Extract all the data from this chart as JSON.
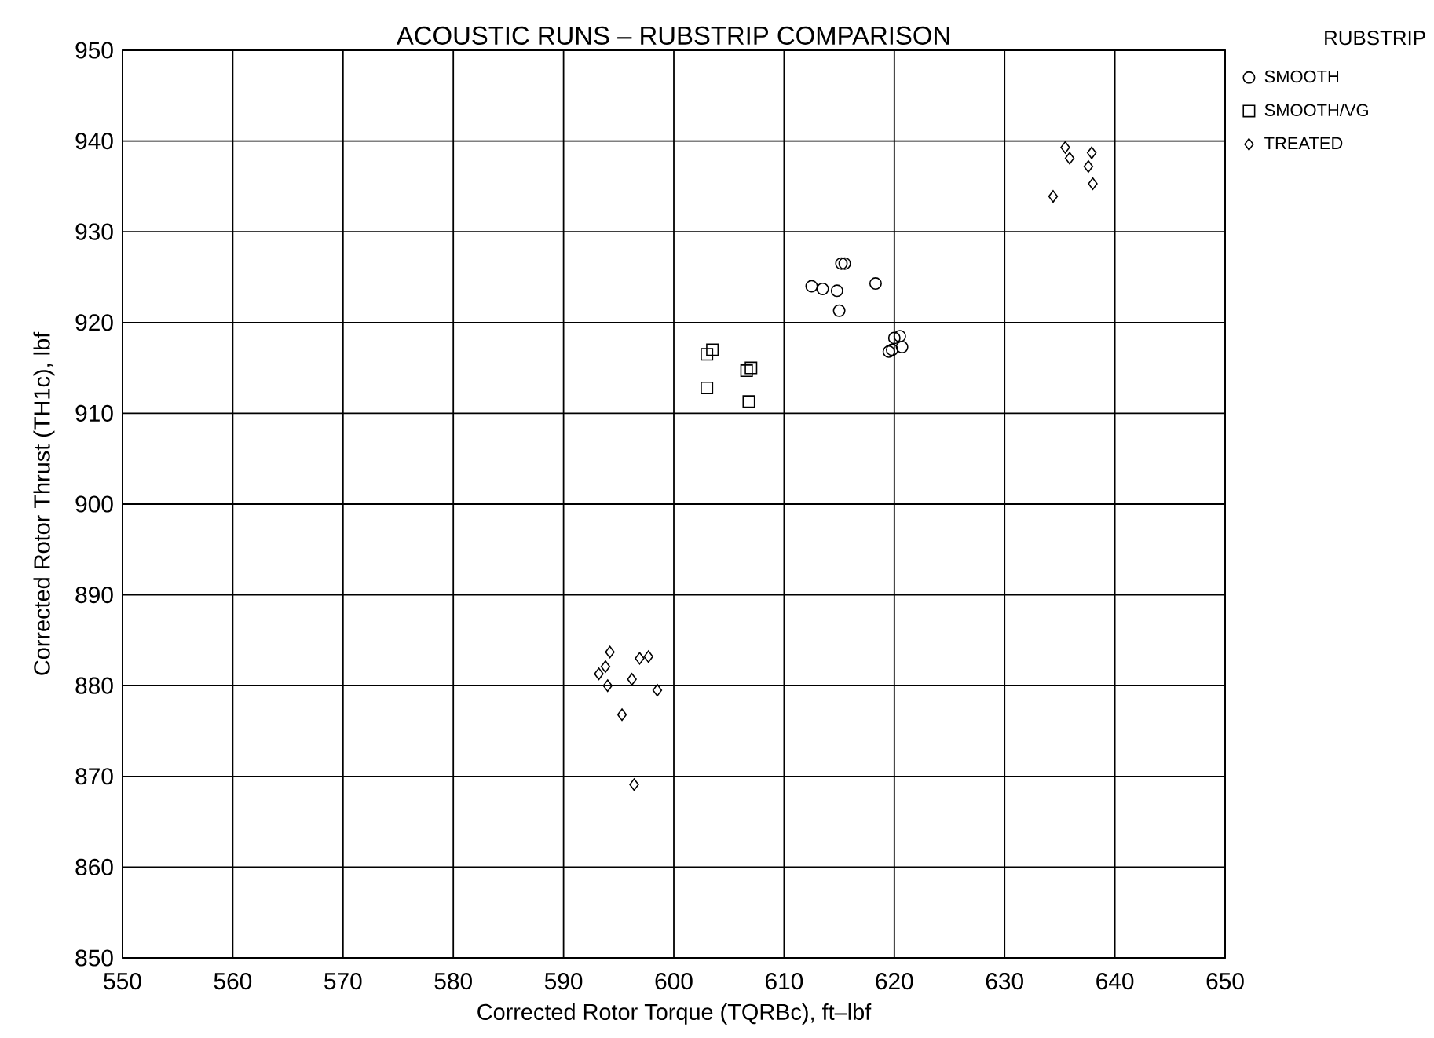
{
  "chart_data": {
    "type": "scatter",
    "title": "ACOUSTIC RUNS – RUBSTRIP COMPARISON",
    "xlabel": "Corrected Rotor Torque (TQRBc),  ft–lbf",
    "ylabel": "Corrected Rotor Thrust (TH1c),  lbf",
    "legend_title": "RUBSTRIP",
    "legend": "top right",
    "grid": true,
    "xlim": [
      550,
      650
    ],
    "xticks": [
      550,
      560,
      570,
      580,
      590,
      600,
      610,
      620,
      630,
      640,
      650
    ],
    "ylim": [
      850,
      950
    ],
    "yticks": [
      850,
      860,
      870,
      880,
      890,
      900,
      910,
      920,
      930,
      940,
      950
    ],
    "series": [
      {
        "name": "SMOOTH",
        "color": "#000000",
        "marker": "circle",
        "x": [
          612.5,
          613.5,
          614.8,
          615.2,
          615.5,
          615,
          618.3,
          619.5,
          619.8,
          620,
          620.5,
          620.7
        ],
        "values": [
          924,
          923.7,
          923.5,
          926.5,
          926.5,
          921.3,
          924.3,
          916.8,
          917,
          918.3,
          918.5,
          917.3
        ]
      },
      {
        "name": "SMOOTH/VG",
        "color": "#000000",
        "marker": "square",
        "x": [
          603,
          603.5,
          603,
          606.6,
          607,
          606.8
        ],
        "values": [
          916.5,
          917,
          912.8,
          914.7,
          915,
          911.3
        ]
      },
      {
        "name": "TREATED",
        "color": "#000000",
        "marker": "diamond",
        "x": [
          594.2,
          593.8,
          593.2,
          594.0,
          596.2,
          596.9,
          597.7,
          598.5,
          595.3,
          596.4,
          635.5,
          635.9,
          637.9,
          637.6,
          638.0,
          634.4
        ],
        "values": [
          883.7,
          882.1,
          881.3,
          880.0,
          880.7,
          883.0,
          883.2,
          879.5,
          876.8,
          869.1,
          939.3,
          938.1,
          938.7,
          937.2,
          935.3,
          933.9
        ]
      }
    ]
  }
}
